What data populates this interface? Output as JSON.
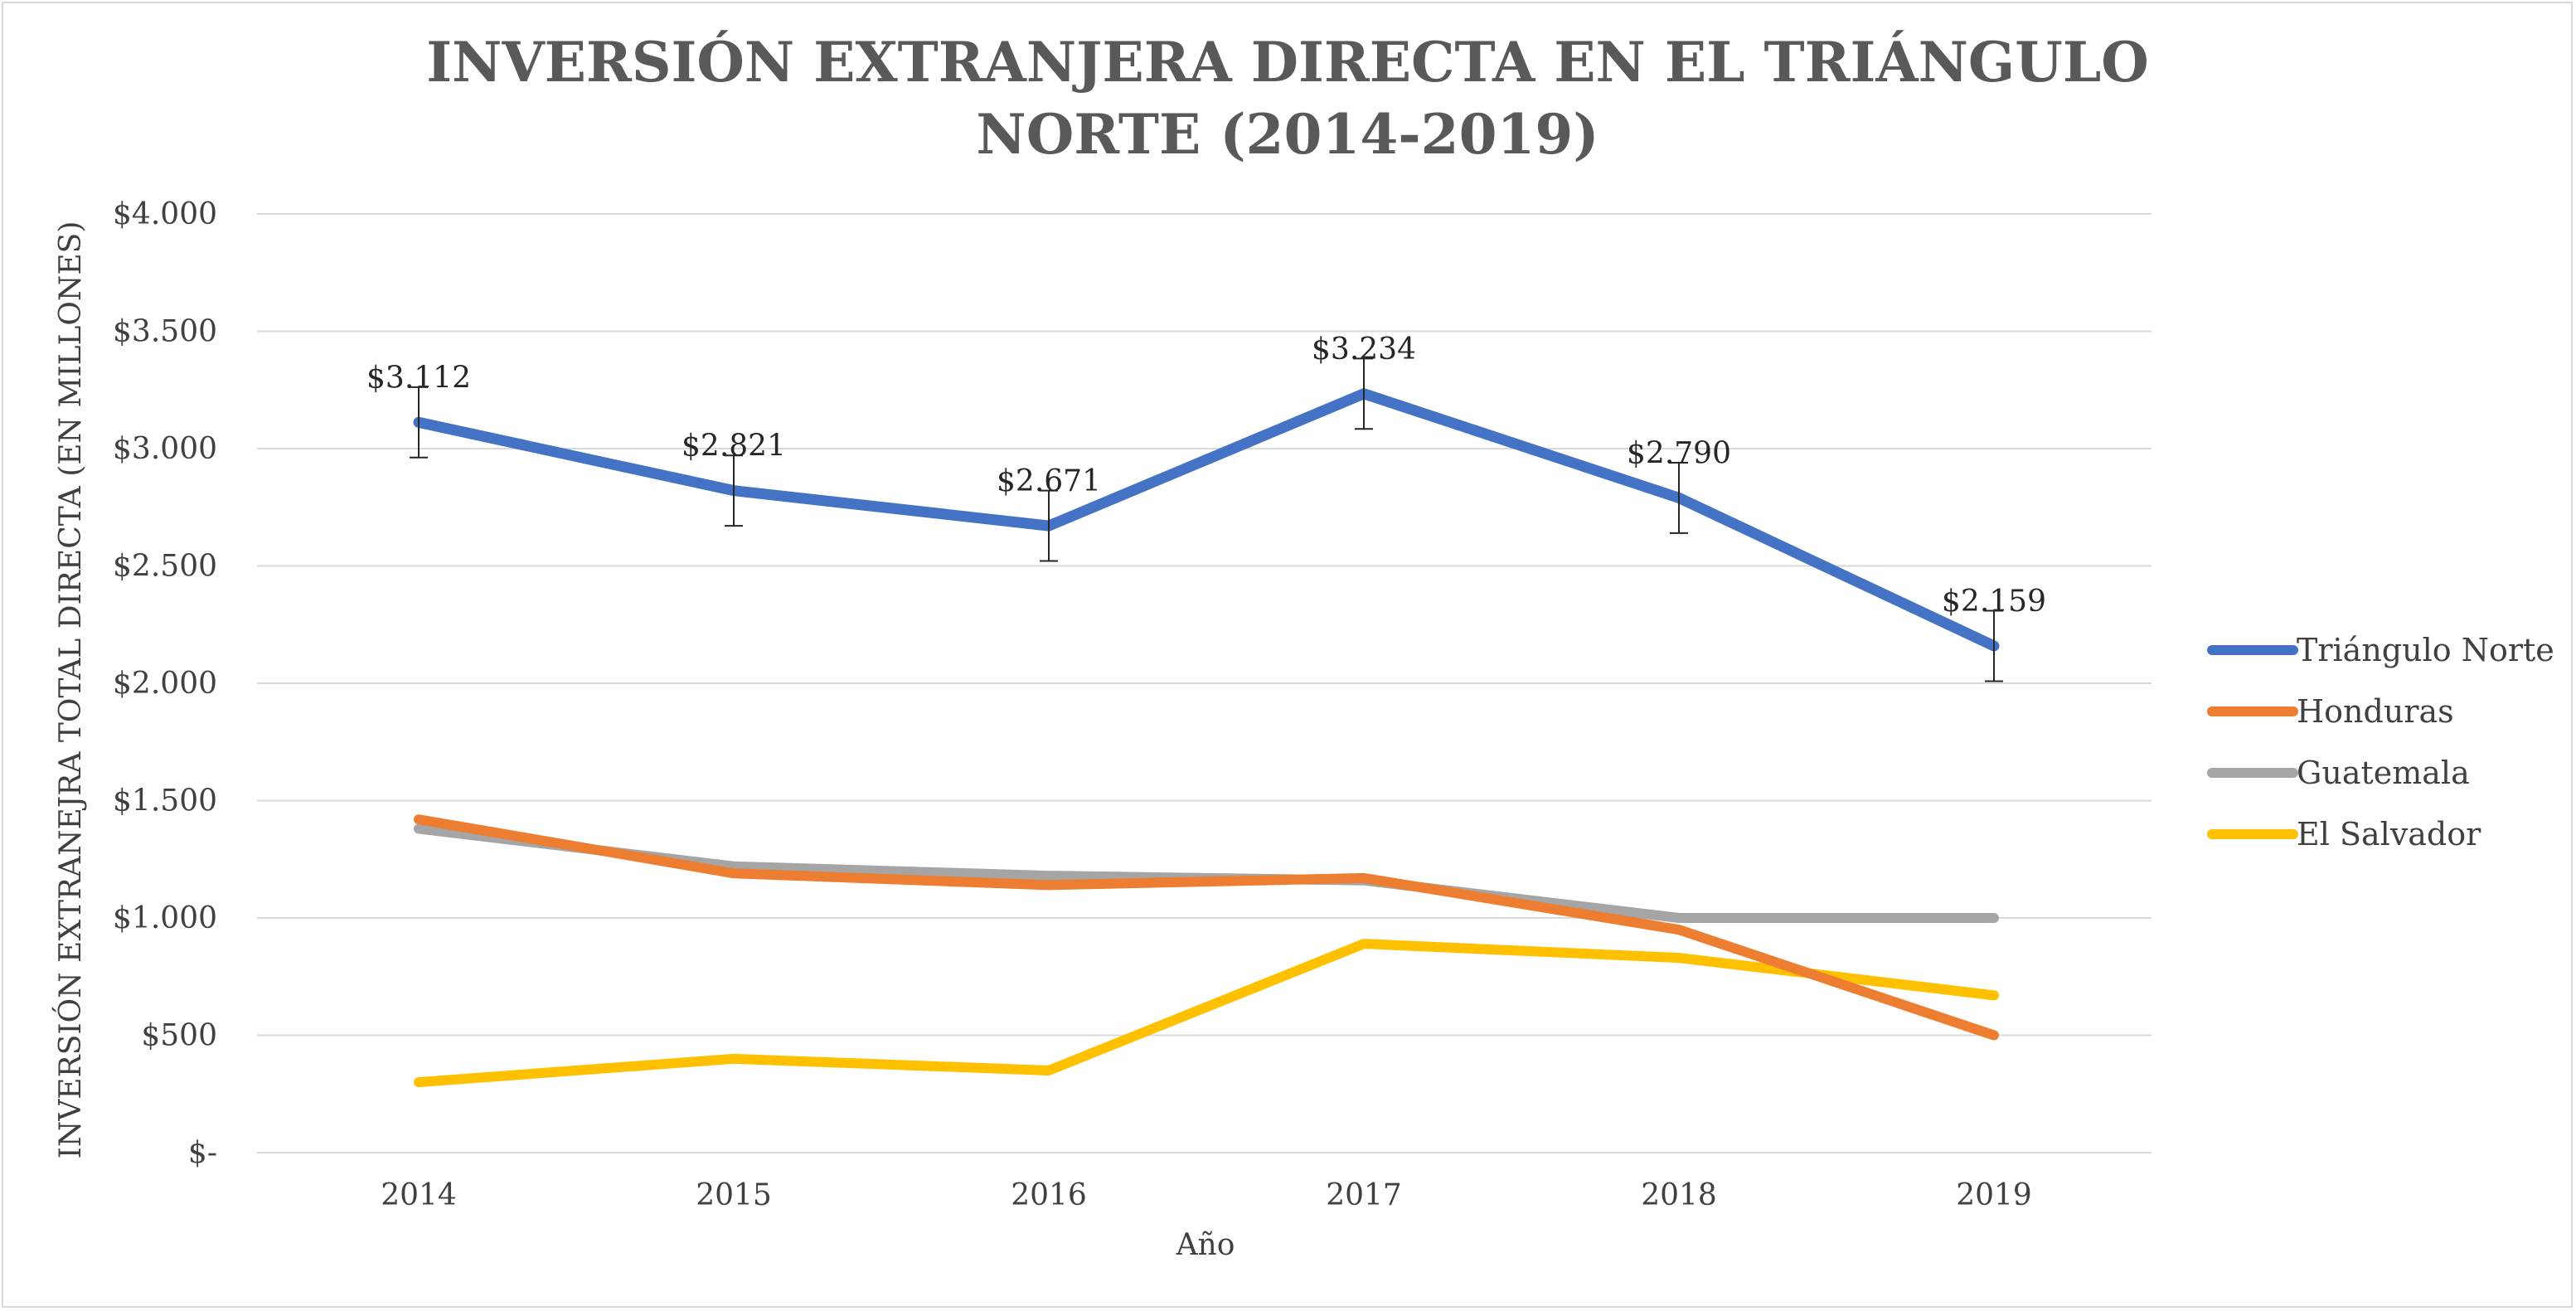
{
  "chart_data": {
    "type": "line",
    "title_lines": [
      "INVERSIÓN EXTRANJERA DIRECTA EN EL TRIÁNGULO",
      "NORTE (2014-2019)"
    ],
    "xlabel": "Año",
    "ylabel": "INVERSIÓN EXTRANEJRA TOTAL DIRECTA (EN MILLONES)",
    "categories": [
      "2014",
      "2015",
      "2016",
      "2017",
      "2018",
      "2019"
    ],
    "ylim": [
      0,
      4000
    ],
    "y_ticks": [
      0,
      500,
      1000,
      1500,
      2000,
      2500,
      3000,
      3500,
      4000
    ],
    "y_tick_labels": [
      "$-",
      "$500",
      "$1.000",
      "$1.500",
      "$2.000",
      "$2.500",
      "$3.000",
      "$3.500",
      "$4.000"
    ],
    "grid": true,
    "legend_position": "right",
    "series": [
      {
        "name": "Triángulo Norte",
        "color": "#4472c4",
        "values": [
          3112,
          2821,
          2671,
          3234,
          2790,
          2159
        ],
        "data_labels": [
          "$3.112",
          "$2.821",
          "$2.671",
          "$3.234",
          "$2.790",
          "$2.159"
        ],
        "error_bar": 150
      },
      {
        "name": "Honduras",
        "color": "#ed7d31",
        "values": [
          1420,
          1190,
          1140,
          1170,
          950,
          500
        ]
      },
      {
        "name": "Guatemala",
        "color": "#a5a5a5",
        "values": [
          1380,
          1220,
          1180,
          1160,
          1000,
          1000
        ]
      },
      {
        "name": "El Salvador",
        "color": "#ffc000",
        "values": [
          300,
          400,
          350,
          890,
          830,
          670
        ]
      }
    ]
  }
}
